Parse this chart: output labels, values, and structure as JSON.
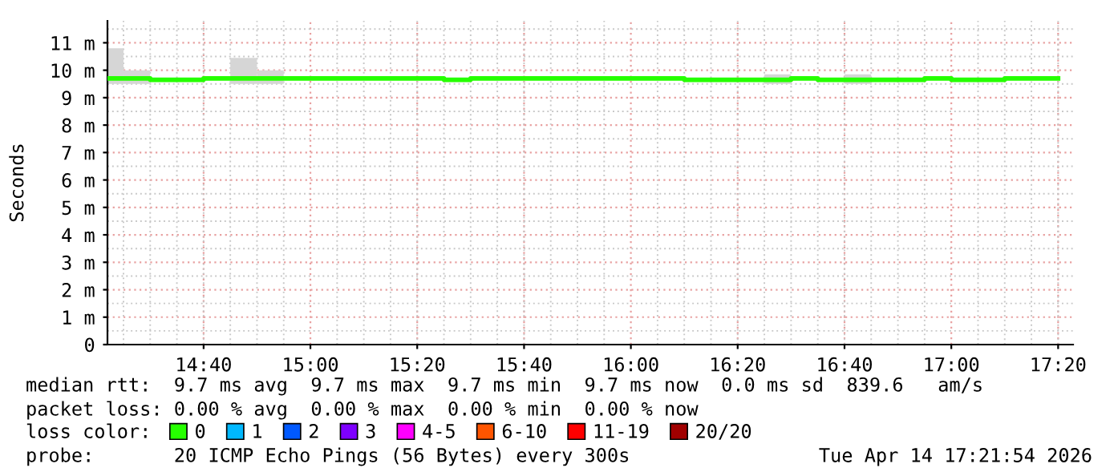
{
  "chart_data": {
    "type": "step",
    "ylabel": "Seconds",
    "xlim": [
      14.3667,
      17.38
    ],
    "ylim": [
      0,
      11.8
    ],
    "xticks": [
      {
        "value": 14.6667,
        "label": "14:40"
      },
      {
        "value": 15.0,
        "label": "15:00"
      },
      {
        "value": 15.3333,
        "label": "15:20"
      },
      {
        "value": 15.6667,
        "label": "15:40"
      },
      {
        "value": 16.0,
        "label": "16:00"
      },
      {
        "value": 16.3333,
        "label": "16:20"
      },
      {
        "value": 16.6667,
        "label": "16:40"
      },
      {
        "value": 17.0,
        "label": "17:00"
      },
      {
        "value": 17.3333,
        "label": "17:20"
      }
    ],
    "yticks": [
      0,
      {
        "value": 1,
        "label": "1 m"
      },
      {
        "value": 2,
        "label": "2 m"
      },
      {
        "value": 3,
        "label": "3 m"
      },
      {
        "value": 4,
        "label": "4 m"
      },
      {
        "value": 5,
        "label": "5 m"
      },
      {
        "value": 6,
        "label": "6 m"
      },
      {
        "value": 7,
        "label": "7 m"
      },
      {
        "value": 8,
        "label": "8 m"
      },
      {
        "value": 9,
        "label": "9 m"
      },
      {
        "value": 10,
        "label": "10 m"
      },
      {
        "value": 11,
        "label": "11 m"
      }
    ],
    "grid": true,
    "legend": "bottom",
    "series": [
      {
        "type": "bar",
        "color": "#d6d6d6",
        "x": [
          14.3917,
          14.4583,
          14.7917,
          14.875,
          16.4583,
          16.7083
        ],
        "base": [
          9.5,
          9.5,
          9.5,
          9.5,
          9.5,
          9.5
        ],
        "values": [
          1.3,
          0.5,
          0.95,
          0.5,
          0.35,
          0.35
        ]
      },
      {
        "name": "0",
        "color": "#26ff00",
        "x": [
          14.3667,
          14.5,
          14.6667,
          15.4167,
          15.5,
          16.1667,
          16.5,
          16.5833,
          16.9167,
          17.0,
          17.1667,
          17.3333
        ],
        "values": [
          9.7,
          9.65,
          9.7,
          9.65,
          9.7,
          9.65,
          9.7,
          9.65,
          9.7,
          9.65,
          9.7,
          9.7
        ]
      },
      {
        "name": "1",
        "color": "#00b8ff"
      },
      {
        "name": "2",
        "color": "#0059ff"
      },
      {
        "name": "3",
        "color": "#7e00ff"
      },
      {
        "name": "4-5",
        "color": "#ff00ff"
      },
      {
        "name": "6-10",
        "color": "#ff5500"
      },
      {
        "name": "11-19",
        "color": "#ff0000"
      },
      {
        "name": "20/20",
        "color": "#a10000"
      }
    ],
    "annotations": [
      "median rtt:  9.7 ms avg  9.7 ms max  9.7 ms min  9.7 ms now  0.0 ms sd  839.6   am/s",
      "packet loss: 0.00 % avg  0.00 % max  0.00 % min  0.00 % now",
      "loss color:",
      "probe:       20 ICMP Echo Pings (56 Bytes) every 300s",
      "Tue Apr 14 17:21:54 2026"
    ]
  }
}
